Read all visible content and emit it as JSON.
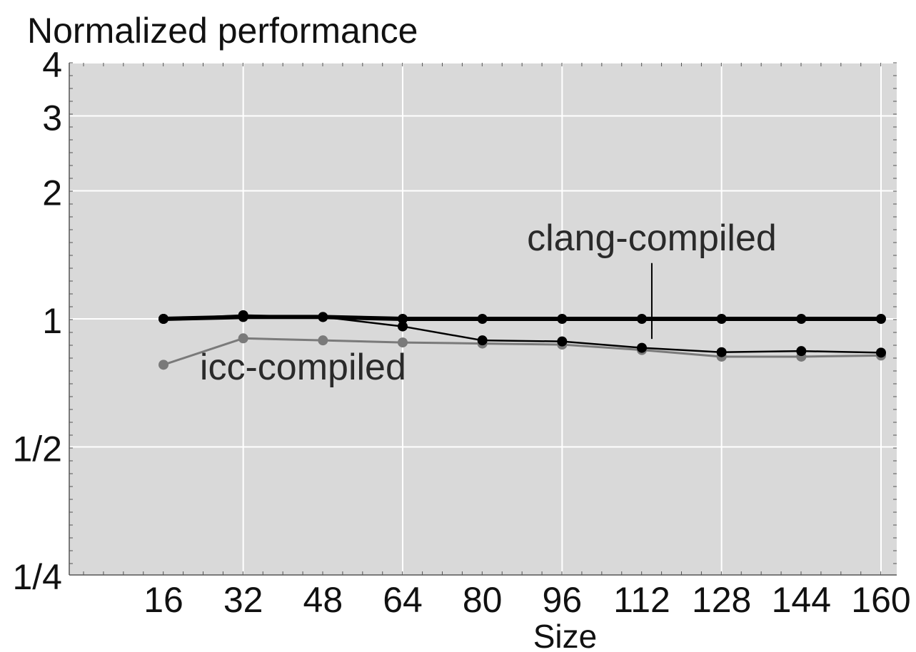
{
  "chart_data": {
    "type": "line",
    "title": "",
    "ylabel": "Normalized performance",
    "xlabel": "Size",
    "x": [
      16,
      32,
      48,
      64,
      80,
      96,
      112,
      128,
      144,
      160
    ],
    "xlim": [
      0,
      160
    ],
    "x_ticks": [
      "16",
      "32",
      "48",
      "64",
      "80",
      "96",
      "112",
      "128",
      "144",
      "160"
    ],
    "yscale": "log2",
    "ylim": [
      0.25,
      4
    ],
    "y_ticks": [
      {
        "value": 0.25,
        "label": "1/4"
      },
      {
        "value": 0.5,
        "label": "1/2"
      },
      {
        "value": 1,
        "label": "1"
      },
      {
        "value": 2,
        "label": "2"
      },
      {
        "value": 3,
        "label": "3"
      },
      {
        "value": 4,
        "label": "4"
      }
    ],
    "grid": true,
    "series": [
      {
        "id": "baseline",
        "color": "#000000",
        "style": "thick",
        "values": [
          1.0,
          1.01,
          1.01,
          1.0,
          1.0,
          1.0,
          1.0,
          1.0,
          1.0,
          1.0
        ]
      },
      {
        "id": "clang",
        "color": "#000000",
        "style": "thin",
        "values": [
          1.0,
          1.02,
          1.01,
          0.96,
          0.89,
          0.885,
          0.855,
          0.835,
          0.84,
          0.833
        ]
      },
      {
        "id": "icc",
        "color": "#7a7a7a",
        "style": "medium",
        "values": [
          0.78,
          0.9,
          0.89,
          0.88,
          0.875,
          0.87,
          0.845,
          0.815,
          0.815,
          0.82
        ]
      }
    ],
    "annotations": [
      {
        "text": "clang-compiled",
        "x": 114,
        "y": 1.45,
        "leader_to": {
          "x": 114,
          "y": 0.87
        }
      },
      {
        "text": "icc-compiled",
        "x": 44,
        "y": 0.72
      }
    ]
  },
  "colors": {
    "plot_background": "#d9d9d9",
    "grid": "#ffffff",
    "axis": "#555555"
  }
}
